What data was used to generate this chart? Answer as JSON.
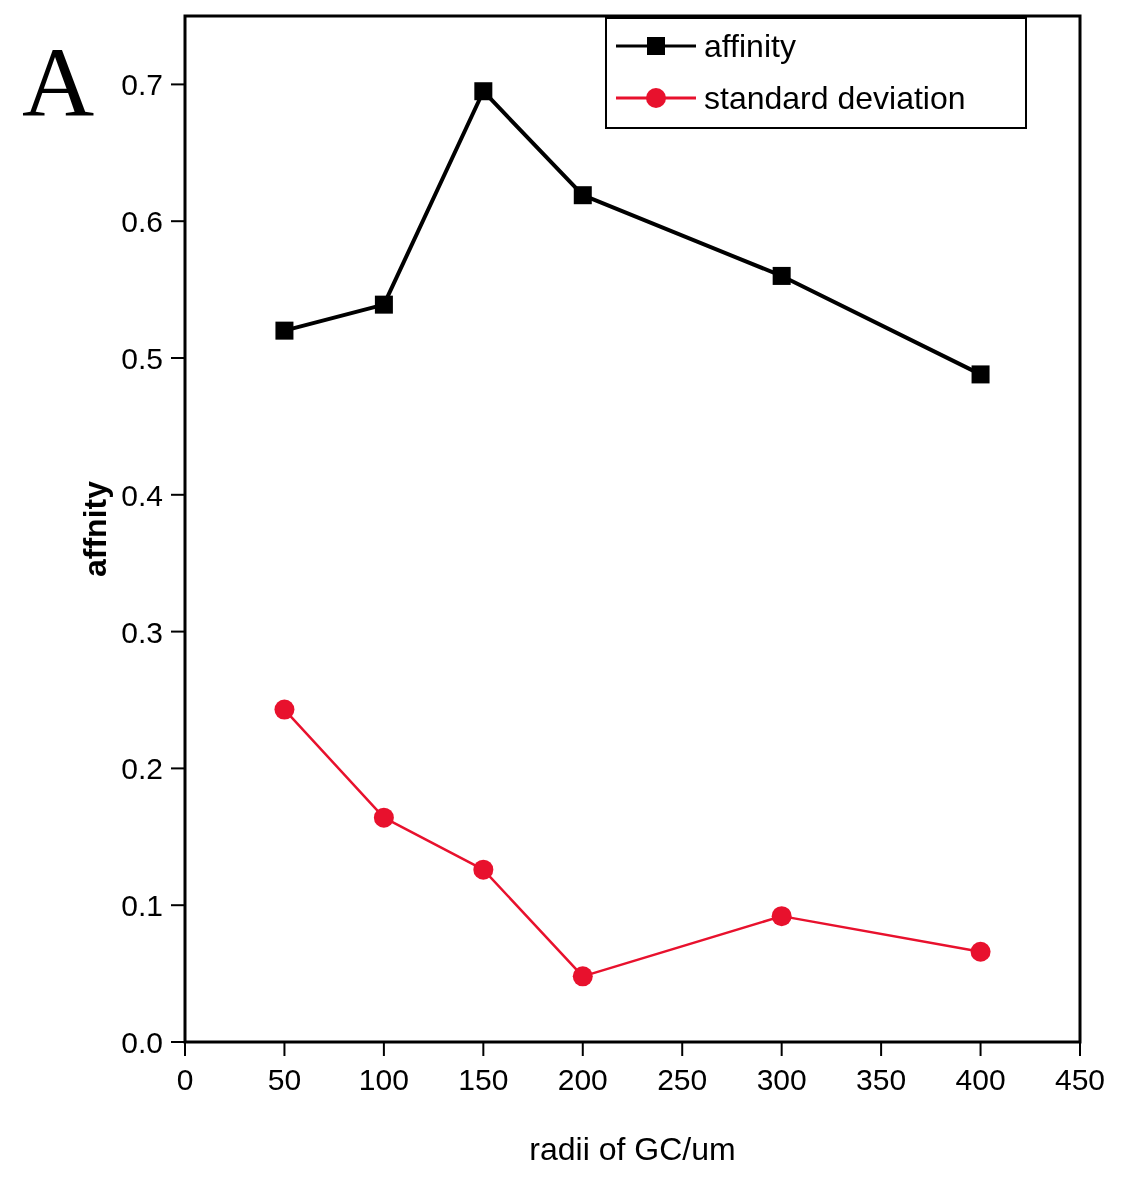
{
  "chart_data": {
    "type": "line",
    "xlabel": "radii of GC/um",
    "ylabel": "affnity",
    "annotations": [
      "A"
    ],
    "xlim": [
      0,
      450
    ],
    "xticks": [
      0,
      50,
      100,
      150,
      200,
      250,
      300,
      350,
      400,
      450
    ],
    "ylim": [
      0,
      0.75
    ],
    "yticks": [
      {
        "value": 0,
        "label": "0.0"
      },
      {
        "value": 0.1,
        "label": "0.1"
      },
      {
        "value": 0.2,
        "label": "0.2"
      },
      {
        "value": 0.3,
        "label": "0.3"
      },
      {
        "value": 0.4,
        "label": "0.4"
      },
      {
        "value": 0.5,
        "label": "0.5"
      },
      {
        "value": 0.6,
        "label": "0.6"
      },
      {
        "value": 0.7,
        "label": "0.7"
      }
    ],
    "x": [
      50,
      100,
      150,
      200,
      300,
      400
    ],
    "series": [
      {
        "name": "affinity",
        "color": "#000000",
        "marker": "square",
        "values": [
          0.52,
          0.539,
          0.695,
          0.619,
          0.56,
          0.488
        ]
      },
      {
        "name": "standard deviation",
        "color": "#e8112d",
        "marker": "circle",
        "values": [
          0.243,
          0.164,
          0.126,
          0.048,
          0.092,
          0.066
        ]
      }
    ],
    "legend": "top right",
    "grid": false
  }
}
